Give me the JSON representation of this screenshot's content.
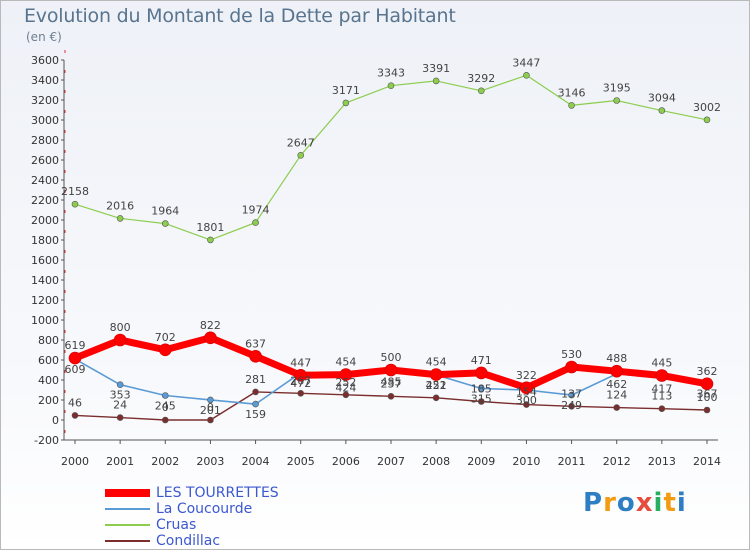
{
  "title": "Evolution du Montant de la Dette par Habitant",
  "subtitle": "(en €)",
  "logo": "Proxiti",
  "chart_data": {
    "type": "line",
    "x": [
      "2000",
      "2001",
      "2002",
      "2003",
      "2004",
      "2005",
      "2006",
      "2007",
      "2008",
      "2009",
      "2010",
      "2011",
      "2012",
      "2013",
      "2014"
    ],
    "ylim": [
      -200,
      3600
    ],
    "ytick_step": 200,
    "grid": false,
    "legend_position": "bottom-left",
    "series": [
      {
        "name": "LES TOURRETTES",
        "color": "#ff0000",
        "values": [
          619,
          800,
          702,
          822,
          637,
          447,
          454,
          500,
          454,
          471,
          322,
          530,
          488,
          445,
          362
        ]
      },
      {
        "name": "La Coucourde",
        "color": "#5b9bd5",
        "values": [
          609,
          353,
          245,
          201,
          159,
          472,
          424,
          485,
          451,
          315,
          300,
          249,
          462,
          417,
          367
        ]
      },
      {
        "name": "Cruas",
        "color": "#8ccd4e",
        "values": [
          2158,
          2016,
          1964,
          1801,
          1974,
          2647,
          3171,
          3343,
          3391,
          3292,
          3447,
          3146,
          3195,
          3094,
          3002
        ]
      },
      {
        "name": "Condillac",
        "color": "#7b2e2e",
        "values": [
          46,
          24,
          0,
          0,
          281,
          267,
          252,
          237,
          222,
          185,
          154,
          137,
          124,
          113,
          100
        ]
      }
    ]
  }
}
